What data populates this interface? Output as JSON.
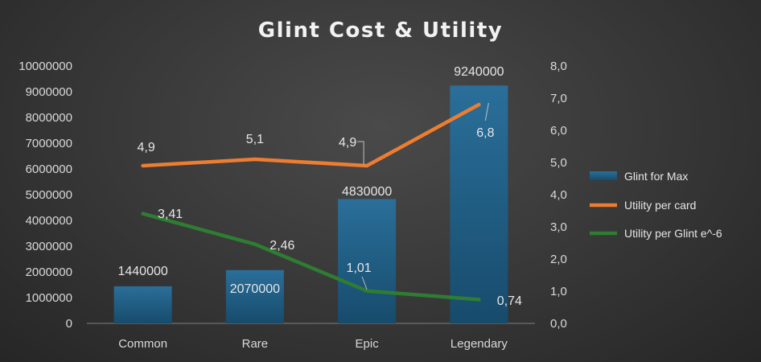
{
  "chart_data": {
    "type": "bar",
    "title": "Glint Cost & Utility",
    "categories": [
      "Common",
      "Rare",
      "Epic",
      "Legendary"
    ],
    "primary_axis": {
      "ylim": [
        0,
        10000000
      ],
      "ticks": [
        "0",
        "1000000",
        "2000000",
        "3000000",
        "4000000",
        "5000000",
        "6000000",
        "7000000",
        "8000000",
        "9000000",
        "10000000"
      ]
    },
    "secondary_axis": {
      "ylim": [
        0,
        8
      ],
      "ticks": [
        "0,0",
        "1,0",
        "2,0",
        "3,0",
        "4,0",
        "5,0",
        "6,0",
        "7,0",
        "8,0"
      ]
    },
    "series": [
      {
        "name": "Glint for Max",
        "type": "bar",
        "axis": "primary",
        "color": "#1f5f86",
        "values": [
          1440000,
          2070000,
          4830000,
          9240000
        ],
        "labels": [
          "1440000",
          "2070000",
          "4830000",
          "9240000"
        ]
      },
      {
        "name": "Utility per card",
        "type": "line",
        "axis": "secondary",
        "color": "#ed7d31",
        "values": [
          4.9,
          5.1,
          4.9,
          6.8
        ],
        "labels": [
          "4,9",
          "5,1",
          "4,9",
          "6,8"
        ]
      },
      {
        "name": "Utility per Glint e^-6",
        "type": "line",
        "axis": "secondary",
        "color": "#2e7d32",
        "values": [
          3.41,
          2.46,
          1.01,
          0.74
        ],
        "labels": [
          "3,41",
          "2,46",
          "1,01",
          "0,74"
        ]
      }
    ],
    "legend": "right",
    "grid": false
  }
}
